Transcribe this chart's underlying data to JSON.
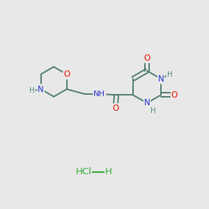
{
  "bg_color": "#e8e8e8",
  "bond_color": "#4a7a6a",
  "atom_colors": {
    "O": "#ee1100",
    "N": "#2233cc",
    "H": "#558877",
    "C": "#4a7a6a",
    "Cl": "#33aa33"
  }
}
